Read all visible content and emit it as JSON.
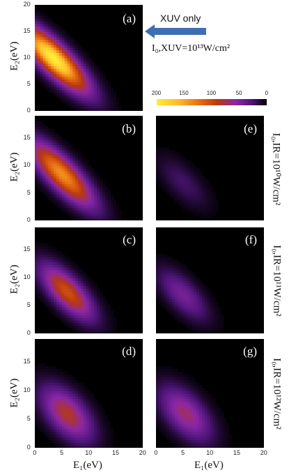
{
  "chart_data": [
    {
      "type": "heatmap",
      "panel_label": "(a)",
      "xlim": [
        0,
        20
      ],
      "ylim": [
        0,
        20
      ],
      "xticks": [
        "",
        "",
        "",
        "",
        ""
      ],
      "yticks": [
        "0",
        "5",
        "10",
        "15",
        "20"
      ],
      "xlabel": "",
      "ylabel": "E₂(eV)",
      "ridge": {
        "e_sum_center": 13.5,
        "e_sum_width": 2.6,
        "peak_center": [
          3.5,
          10
        ],
        "peak_value": 200,
        "spread": 8.5
      }
    },
    {
      "type": "heatmap",
      "panel_label": "(b)",
      "xlim": [
        0,
        20
      ],
      "ylim": [
        0,
        19
      ],
      "xticks": [
        "",
        "",
        "",
        "",
        ""
      ],
      "yticks": [
        "0",
        "5",
        "10",
        "15"
      ],
      "xlabel": "",
      "ylabel": "E₂(eV)",
      "ridge": {
        "e_sum_center": 13.5,
        "e_sum_width": 2.6,
        "peak_center": [
          5,
          8.5
        ],
        "peak_value": 150,
        "spread": 8
      }
    },
    {
      "type": "heatmap",
      "panel_label": "(c)",
      "xlim": [
        0,
        20
      ],
      "ylim": [
        0,
        19
      ],
      "xticks": [
        "",
        "",
        "",
        "",
        ""
      ],
      "yticks": [
        "0",
        "5",
        "10",
        "15"
      ],
      "xlabel": "",
      "ylabel": "E₂(eV)",
      "ridge": {
        "e_sum_center": 13.5,
        "e_sum_width": 2.6,
        "peak_center": [
          6,
          7.5
        ],
        "peak_value": 115,
        "spread": 6.5
      }
    },
    {
      "type": "heatmap",
      "panel_label": "(d)",
      "xlim": [
        0,
        20
      ],
      "ylim": [
        0,
        19
      ],
      "xticks": [
        "0",
        "5",
        "10",
        "15",
        "20"
      ],
      "yticks": [
        "0",
        "5",
        "10",
        "15"
      ],
      "xlabel": "E₁(eV)",
      "ylabel": "E₂(eV)",
      "ridge": {
        "e_sum_center": 12,
        "e_sum_width": 3.2,
        "peak_center": [
          6,
          6
        ],
        "peak_value": 95,
        "spread": 6
      }
    },
    {
      "type": "heatmap",
      "panel_label": "(e)",
      "xlim": [
        0,
        20
      ],
      "ylim": [
        0,
        19
      ],
      "xticks": [
        "",
        "",
        "",
        "",
        ""
      ],
      "yticks": [],
      "xlabel": "",
      "ylabel": "",
      "ridge": {
        "e_sum_center": 12,
        "e_sum_width": 2.6,
        "peak_center": [
          5,
          7
        ],
        "peak_value": 28,
        "spread": 6
      }
    },
    {
      "type": "heatmap",
      "panel_label": "(f)",
      "xlim": [
        0,
        20
      ],
      "ylim": [
        0,
        19
      ],
      "xticks": [
        "",
        "",
        "",
        "",
        ""
      ],
      "yticks": [],
      "xlabel": "",
      "ylabel": "",
      "ridge": {
        "e_sum_center": 12,
        "e_sum_width": 2.6,
        "peak_center": [
          5,
          7
        ],
        "peak_value": 55,
        "spread": 6
      }
    },
    {
      "type": "heatmap",
      "panel_label": "(g)",
      "xlim": [
        0,
        20
      ],
      "ylim": [
        0,
        19
      ],
      "xticks": [
        "0",
        "5",
        "10",
        "15",
        "20"
      ],
      "yticks": [],
      "xlabel": "E₁(eV)",
      "ylabel": "",
      "ridge": {
        "e_sum_center": 11.5,
        "e_sum_width": 3.2,
        "peak_center": [
          5.5,
          6
        ],
        "peak_value": 80,
        "spread": 6
      }
    }
  ],
  "colorbar": {
    "ticks": [
      "200",
      "150",
      "100",
      "50",
      "0"
    ],
    "range": [
      0,
      200
    ],
    "colors": [
      "#000000",
      "#4d1578",
      "#8b27a6",
      "#b9380f",
      "#e46a10",
      "#ffb82c",
      "#ffee35"
    ]
  },
  "annotations": {
    "xuv_only": "XUV only",
    "xuv_intensity": "I₀,XUV=10¹³W/cm²",
    "ir_intensity_e": "I₀,IR=10¹⁰W/cm²",
    "ir_intensity_f": "I₀,IR=10¹¹W/cm²",
    "ir_intensity_g": "I₀,IR=10¹²W/cm²"
  },
  "arrow_color": "#3e6fb3"
}
